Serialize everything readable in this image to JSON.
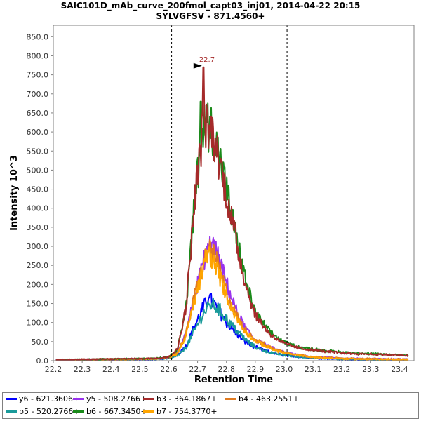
{
  "chart_data": {
    "type": "line",
    "title": "SAIC101D_mAb_curve_200fmol_capt03_inj01, 2014-04-22 20:15",
    "subtitle": "SYLVGFSV - 871.4560+",
    "xlabel": "Retention Time",
    "ylabel": "Intensity  10^3",
    "xlim": [
      22.2,
      23.45
    ],
    "ylim": [
      0,
      880
    ],
    "xticks": [
      "22.2",
      "22.3",
      "22.4",
      "22.5",
      "22.6",
      "22.7",
      "22.8",
      "22.9",
      "23.0",
      "23.1",
      "23.2",
      "23.3",
      "23.4"
    ],
    "yticks": [
      "0.0",
      "50.0",
      "100.0",
      "150.0",
      "200.0",
      "250.0",
      "300.0",
      "350.0",
      "400.0",
      "450.0",
      "500.0",
      "550.0",
      "600.0",
      "650.0",
      "700.0",
      "750.0",
      "800.0",
      "850.0"
    ],
    "grid": false,
    "integration_boundaries": [
      22.61,
      23.01
    ],
    "peak_annotation": {
      "x": 22.72,
      "y": 770,
      "label": "22.7"
    },
    "legend_placement": "bottom",
    "series": [
      {
        "name": "y6 - 621.3606+",
        "color": "#0000ff",
        "apex_x": 22.74,
        "apex_y": 165,
        "jitter": 22,
        "x": [
          22.21,
          22.55,
          22.6,
          22.63,
          22.66,
          22.69,
          22.72,
          22.74,
          22.77,
          22.8,
          22.83,
          22.86,
          22.9,
          22.95,
          23.0,
          23.05,
          23.1,
          23.2,
          23.3,
          23.4,
          23.43
        ],
        "y": [
          2,
          4,
          6,
          15,
          40,
          90,
          140,
          165,
          135,
          100,
          75,
          52,
          35,
          22,
          14,
          10,
          7,
          4,
          3,
          2,
          2
        ]
      },
      {
        "name": "y5 - 508.2766+",
        "color": "#9933ee",
        "apex_x": 22.75,
        "apex_y": 310,
        "jitter": 35,
        "x": [
          22.21,
          22.55,
          22.6,
          22.63,
          22.66,
          22.69,
          22.72,
          22.75,
          22.78,
          22.81,
          22.84,
          22.87,
          22.9,
          22.95,
          23.0,
          23.05,
          23.1,
          23.2,
          23.3,
          23.4,
          23.43
        ],
        "y": [
          2,
          5,
          8,
          20,
          70,
          170,
          260,
          310,
          250,
          180,
          120,
          80,
          55,
          35,
          22,
          15,
          10,
          6,
          5,
          4,
          4
        ]
      },
      {
        "name": "b3 - 364.1867+",
        "color": "#a52a2a",
        "apex_x": 22.72,
        "apex_y": 770,
        "jitter": 80,
        "x": [
          22.21,
          22.55,
          22.6,
          22.63,
          22.66,
          22.69,
          22.72,
          22.75,
          22.78,
          22.81,
          22.84,
          22.87,
          22.9,
          22.95,
          23.0,
          23.05,
          23.1,
          23.2,
          23.3,
          23.4,
          23.43
        ],
        "y": [
          2,
          6,
          10,
          30,
          140,
          420,
          620,
          600,
          510,
          400,
          290,
          190,
          120,
          70,
          45,
          33,
          28,
          20,
          17,
          14,
          13
        ]
      },
      {
        "name": "b4 - 463.2551+",
        "color": "#e07a20",
        "apex_x": 22.74,
        "apex_y": 300,
        "jitter": 35,
        "x": [
          22.21,
          22.55,
          22.6,
          22.63,
          22.66,
          22.69,
          22.72,
          22.74,
          22.77,
          22.8,
          22.83,
          22.86,
          22.9,
          22.95,
          23.0,
          23.05,
          23.1,
          23.2,
          23.3,
          23.4,
          23.43
        ],
        "y": [
          2,
          5,
          8,
          20,
          70,
          170,
          250,
          300,
          250,
          180,
          125,
          85,
          55,
          35,
          22,
          15,
          10,
          6,
          5,
          4,
          4
        ]
      },
      {
        "name": "b5 - 520.2766+",
        "color": "#1a9a9a",
        "apex_x": 22.75,
        "apex_y": 150,
        "jitter": 20,
        "x": [
          22.21,
          22.55,
          22.6,
          22.63,
          22.66,
          22.69,
          22.72,
          22.75,
          22.78,
          22.81,
          22.84,
          22.87,
          22.9,
          22.95,
          23.0,
          23.05,
          23.1,
          23.2,
          23.3,
          23.4,
          23.43
        ],
        "y": [
          2,
          4,
          6,
          12,
          35,
          80,
          125,
          150,
          130,
          100,
          75,
          52,
          35,
          22,
          14,
          10,
          7,
          4,
          3,
          2,
          2
        ]
      },
      {
        "name": "b6 - 667.3450+",
        "color": "#1a8a1a",
        "apex_x": 22.71,
        "apex_y": 680,
        "jitter": 75,
        "x": [
          22.21,
          22.55,
          22.6,
          22.63,
          22.66,
          22.69,
          22.72,
          22.75,
          22.78,
          22.81,
          22.84,
          22.87,
          22.9,
          22.95,
          23.0,
          23.05,
          23.1,
          23.2,
          23.3,
          23.4,
          23.43
        ],
        "y": [
          2,
          6,
          10,
          30,
          140,
          420,
          620,
          610,
          520,
          410,
          300,
          200,
          125,
          75,
          48,
          36,
          30,
          22,
          18,
          15,
          14
        ]
      },
      {
        "name": "b7 - 754.3770+",
        "color": "#ffa500",
        "apex_x": 22.73,
        "apex_y": 290,
        "jitter": 30,
        "x": [
          22.21,
          22.55,
          22.6,
          22.63,
          22.66,
          22.69,
          22.72,
          22.74,
          22.77,
          22.8,
          22.83,
          22.86,
          22.9,
          22.95,
          23.0,
          23.05,
          23.1,
          23.2,
          23.3,
          23.4,
          23.43
        ],
        "y": [
          2,
          5,
          8,
          18,
          65,
          160,
          240,
          280,
          235,
          170,
          120,
          80,
          52,
          33,
          20,
          14,
          9,
          5,
          4,
          3,
          3
        ]
      }
    ]
  }
}
